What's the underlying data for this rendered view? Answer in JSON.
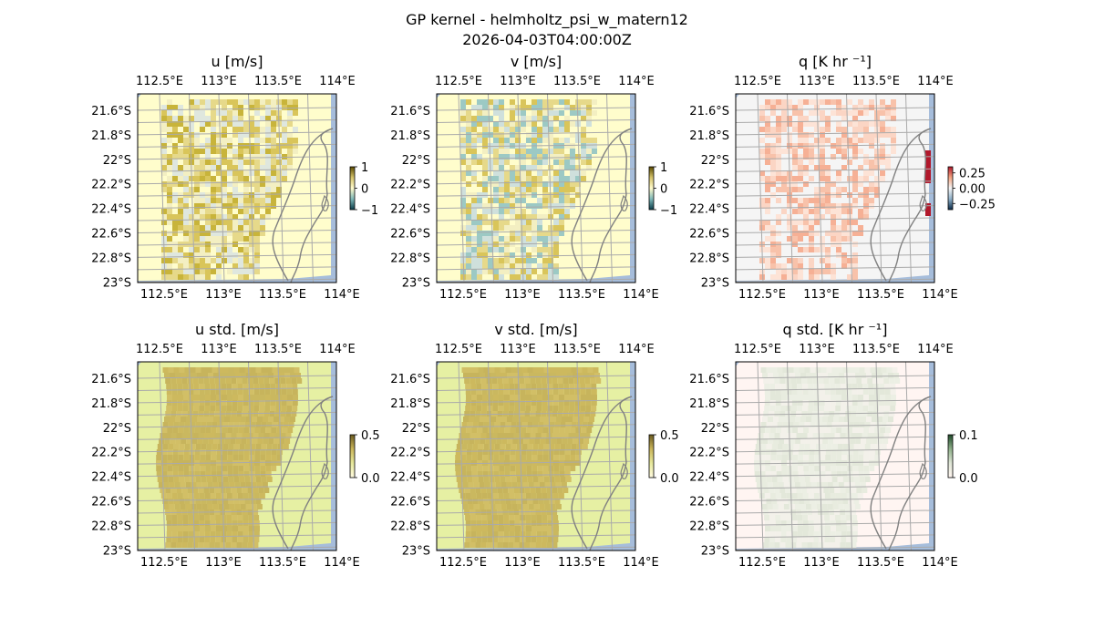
{
  "figure": {
    "title_line1": "GP kernel - helmholtz_psi_w_matern12",
    "title_line2": "2026-04-03T04:00:00Z"
  },
  "chart_data": [
    {
      "id": "u",
      "type": "heatmap",
      "title": "u [m/s]",
      "lon_ticks": [
        "112.5°E",
        "113°E",
        "113.5°E",
        "114°E"
      ],
      "lat_ticks": [
        "21.6°S",
        "21.8°S",
        "22°S",
        "22.2°S",
        "22.4°S",
        "22.6°S",
        "22.8°S",
        "23°S"
      ],
      "colorbar": {
        "ticks": [
          "1",
          "0",
          "−1"
        ],
        "range": [
          -1,
          1
        ],
        "colors": [
          "#0b3d4a",
          "#7fb8b8",
          "#fffacc",
          "#d4c26a",
          "#5a4a00"
        ]
      },
      "field_colors": {
        "land": "#fffdcc",
        "ocean_cells": [
          "#e6d98a",
          "#d9c55a",
          "#c8b43a",
          "#dfe7de",
          "#f3efc2"
        ]
      }
    },
    {
      "id": "v",
      "type": "heatmap",
      "title": "v [m/s]",
      "lon_ticks": [
        "112.5°E",
        "113°E",
        "113.5°E",
        "114°E"
      ],
      "lat_ticks": [
        "21.6°S",
        "21.8°S",
        "22°S",
        "22.2°S",
        "22.4°S",
        "22.6°S",
        "22.8°S",
        "23°S"
      ],
      "colorbar": {
        "ticks": [
          "1",
          "0",
          "−1"
        ],
        "range": [
          -1,
          1
        ],
        "colors": [
          "#0b3d4a",
          "#7fb8b8",
          "#fffacc",
          "#d4c26a",
          "#5a4a00"
        ]
      },
      "field_colors": {
        "land": "#fffdcc",
        "ocean_cells": [
          "#d9c55a",
          "#e6d98a",
          "#cfe0dc",
          "#9cc9c4",
          "#f3efc2"
        ]
      }
    },
    {
      "id": "q",
      "type": "heatmap",
      "title": "q [K hr ⁻¹]",
      "lon_ticks": [
        "112.5°E",
        "113°E",
        "113.5°E",
        "114°E"
      ],
      "lat_ticks": [
        "21.6°S",
        "21.8°S",
        "22°S",
        "22.2°S",
        "22.4°S",
        "22.6°S",
        "22.8°S",
        "23°S"
      ],
      "colorbar": {
        "ticks": [
          "0.25",
          "0.00",
          "−0.25"
        ],
        "range": [
          -0.35,
          0.35
        ],
        "colors": [
          "#0b2b4a",
          "#8fb0c8",
          "#f5f5f5",
          "#f4a582",
          "#b2182b"
        ]
      },
      "field_colors": {
        "land": "#f5f5f5",
        "ocean_cells": [
          "#fbd5c4",
          "#f8c2aa",
          "#f6b095",
          "#fde3d6",
          "#f5f5f5"
        ]
      }
    },
    {
      "id": "u_std",
      "type": "heatmap",
      "title": "u std. [m/s]",
      "lon_ticks": [
        "112.5°E",
        "113°E",
        "113.5°E",
        "114°E"
      ],
      "lat_ticks": [
        "21.6°S",
        "21.8°S",
        "22°S",
        "22.2°S",
        "22.4°S",
        "22.6°S",
        "22.8°S",
        "23°S"
      ],
      "colorbar": {
        "ticks": [
          "0.5",
          "0.0"
        ],
        "range": [
          0,
          0.5
        ],
        "colors": [
          "#fffae0",
          "#e6e89c",
          "#c9b55a",
          "#6a5a20"
        ]
      },
      "field_colors": {
        "land": "#e6f0a3",
        "ocean_cells": [
          "#cdb95e",
          "#c7b45c",
          "#d2bf66",
          "#cab85f"
        ]
      }
    },
    {
      "id": "v_std",
      "type": "heatmap",
      "title": "v std. [m/s]",
      "lon_ticks": [
        "112.5°E",
        "113°E",
        "113.5°E",
        "114°E"
      ],
      "lat_ticks": [
        "21.6°S",
        "21.8°S",
        "22°S",
        "22.2°S",
        "22.4°S",
        "22.6°S",
        "22.8°S",
        "23°S"
      ],
      "colorbar": {
        "ticks": [
          "0.5",
          "0.0"
        ],
        "range": [
          0,
          0.5
        ],
        "colors": [
          "#fffae0",
          "#e6e89c",
          "#c9b55a",
          "#6a5a20"
        ]
      },
      "field_colors": {
        "land": "#e6f0a3",
        "ocean_cells": [
          "#cdb95e",
          "#c7b45c",
          "#d2bf66",
          "#cab85f"
        ]
      }
    },
    {
      "id": "q_std",
      "type": "heatmap",
      "title": "q std. [K hr ⁻¹]",
      "lon_ticks": [
        "112.5°E",
        "113°E",
        "113.5°E",
        "114°E"
      ],
      "lat_ticks": [
        "21.6°S",
        "21.8°S",
        "22°S",
        "22.2°S",
        "22.4°S",
        "22.6°S",
        "22.8°S",
        "23°S"
      ],
      "colorbar": {
        "ticks": [
          "0.1",
          "0.0"
        ],
        "range": [
          0,
          0.1
        ],
        "colors": [
          "#fff5f0",
          "#dfe6d6",
          "#8fb08a",
          "#1f4a2a"
        ]
      },
      "field_colors": {
        "land": "#fff5f2",
        "ocean_cells": [
          "#ecefe4",
          "#e3e8da",
          "#f3f1ea",
          "#e8ecdf"
        ]
      }
    }
  ],
  "map_style": {
    "ocean": "#a6bddb",
    "grid": "#aaaaaa",
    "coast": "#808080"
  }
}
